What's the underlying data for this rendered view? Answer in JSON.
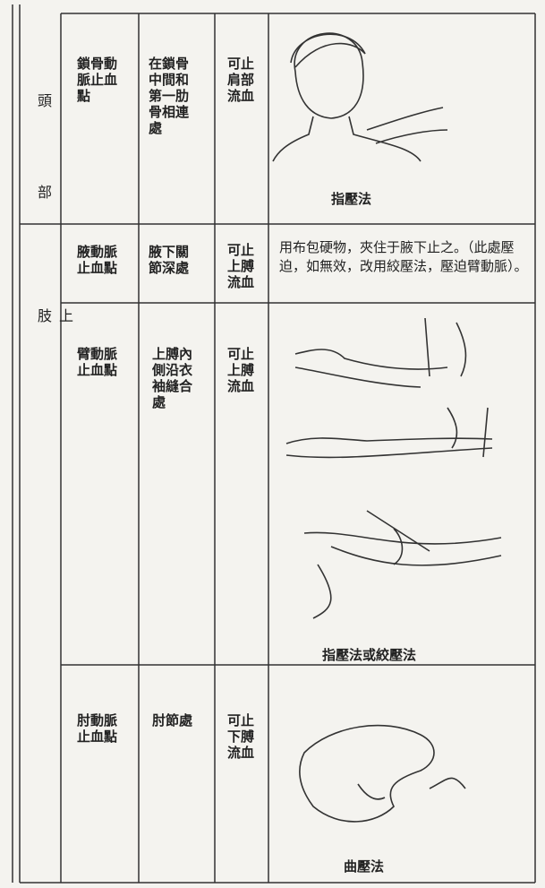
{
  "sections": [
    {
      "label": "頭部"
    },
    {
      "label": "上肢"
    }
  ],
  "table": {
    "rows": [
      [
        "鎖骨動脈止血點",
        "在鎖骨中間和第一肋骨相連處",
        "可止肩部流血",
        "指壓法"
      ],
      [
        "腋動脈止血點",
        "腋下關節深處",
        "可止上膊流血",
        "用布包硬物，夾住于腋下止之。（此處壓迫，如無效，改用絞壓法，壓迫臂動脈）。"
      ],
      [
        "臂動脈止血點",
        "上膊內側沿衣袖縫合處",
        "可止上膊流血",
        "指壓法或絞壓法"
      ],
      [
        "肘動脈止血點",
        "肘節處",
        "可止下膊流血",
        "曲壓法"
      ]
    ]
  }
}
